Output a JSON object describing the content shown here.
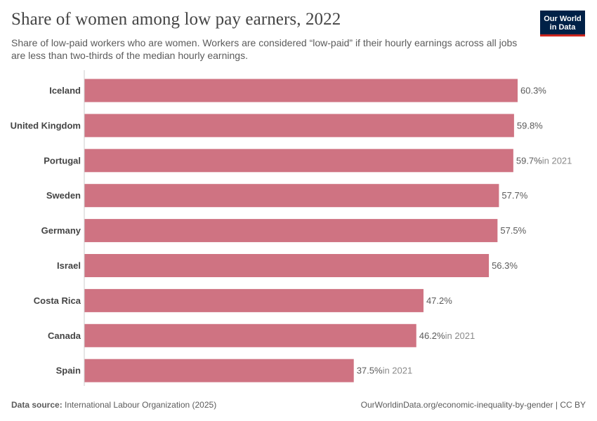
{
  "header": {
    "title": "Share of women among low pay earners, 2022",
    "subtitle": "Share of low-paid workers who are women. Workers are considered “low-paid” if their hourly earnings across all jobs are less than two-thirds of the median hourly earnings.",
    "logo_line1": "Our World",
    "logo_line2": "in Data"
  },
  "footer": {
    "source_label": "Data source:",
    "source_text": "International Labour Organization (2025)",
    "url": "OurWorldinData.org/economic-inequality-by-gender | CC BY"
  },
  "colors": {
    "bar": "#cf7382",
    "axis": "#cccccc",
    "label": "#444444",
    "value": "#5b5b5b",
    "note": "#8a8a8a"
  },
  "chart_data": {
    "type": "bar",
    "orientation": "horizontal",
    "title": "Share of women among low pay earners, 2022",
    "xlabel": "",
    "ylabel": "",
    "unit": "%",
    "xlim": [
      0,
      60.3
    ],
    "categories": [
      "Iceland",
      "United Kingdom",
      "Portugal",
      "Sweden",
      "Germany",
      "Israel",
      "Costa Rica",
      "Canada",
      "Spain"
    ],
    "values": [
      60.3,
      59.8,
      59.7,
      57.7,
      57.5,
      56.3,
      47.2,
      46.2,
      37.5
    ],
    "value_labels": [
      "60.3%",
      "59.8%",
      "59.7%",
      "57.7%",
      "57.5%",
      "56.3%",
      "47.2%",
      "46.2%",
      "37.5%"
    ],
    "notes": [
      "",
      "",
      "in 2021",
      "",
      "",
      "",
      "",
      "in 2021",
      "in 2021"
    ]
  }
}
